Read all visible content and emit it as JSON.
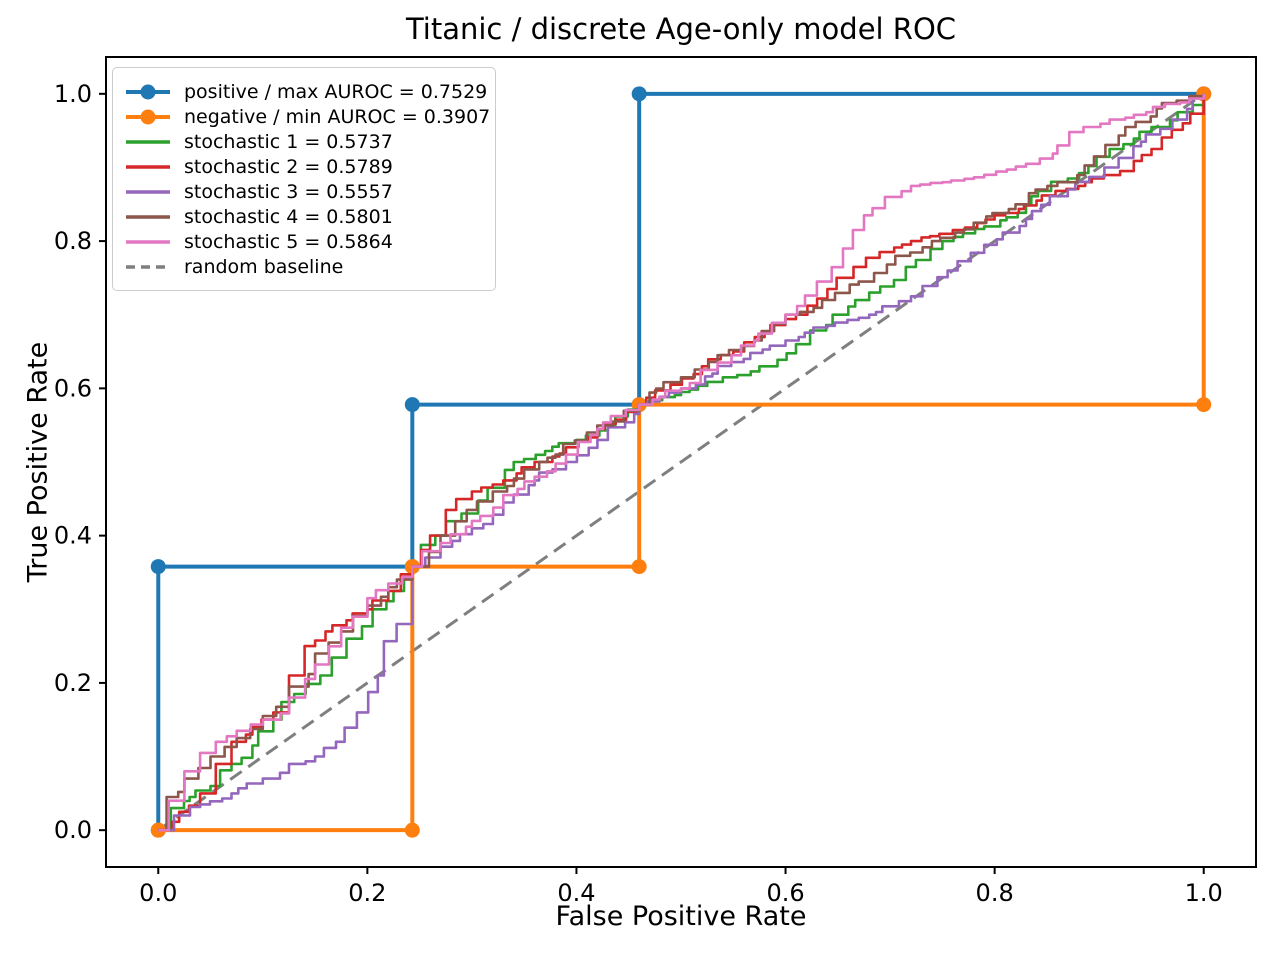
{
  "figure": {
    "title": "Titanic / discrete Age-only model ROC",
    "background": "#ffffff",
    "text_color": "#000000"
  },
  "chart_data": {
    "type": "line",
    "title": "Titanic / discrete Age-only model ROC",
    "xlabel": "False Positive Rate",
    "ylabel": "True Positive Rate",
    "xlim": [
      -0.05,
      1.05
    ],
    "ylim": [
      -0.05,
      1.05
    ],
    "xticks": [
      0.0,
      0.2,
      0.4,
      0.6,
      0.8,
      1.0
    ],
    "yticks": [
      0.0,
      0.2,
      0.4,
      0.6,
      0.8,
      1.0
    ],
    "grid": false,
    "legend_position": "upper left",
    "series": [
      {
        "name": "positive / max AUROC = 0.7529",
        "color": "#1f77b4",
        "style": "step",
        "marker": true,
        "linewidth": 4,
        "z": 2,
        "points": [
          [
            0,
            0
          ],
          [
            0,
            0.358
          ],
          [
            0.243,
            0.358
          ],
          [
            0.243,
            0.578
          ],
          [
            0.46,
            0.578
          ],
          [
            0.46,
            1.0
          ],
          [
            1.0,
            1.0
          ]
        ]
      },
      {
        "name": "negative / min AUROC = 0.3907",
        "color": "#ff7f0e",
        "style": "step",
        "marker": true,
        "linewidth": 4,
        "z": 3,
        "points": [
          [
            0,
            0
          ],
          [
            0.243,
            0
          ],
          [
            0.243,
            0.358
          ],
          [
            0.46,
            0.358
          ],
          [
            0.46,
            0.578
          ],
          [
            1.0,
            0.578
          ],
          [
            1.0,
            1.0
          ]
        ]
      },
      {
        "name": "stochastic 1 = 0.5737",
        "color": "#2ca02c",
        "style": "jagged",
        "marker": false,
        "linewidth": 2.6,
        "z": 4,
        "points": [
          [
            0,
            0
          ],
          [
            0.012,
            0.03
          ],
          [
            0.03,
            0.045
          ],
          [
            0.05,
            0.06
          ],
          [
            0.07,
            0.09
          ],
          [
            0.09,
            0.115
          ],
          [
            0.11,
            0.15
          ],
          [
            0.13,
            0.185
          ],
          [
            0.155,
            0.21
          ],
          [
            0.18,
            0.26
          ],
          [
            0.205,
            0.3
          ],
          [
            0.225,
            0.325
          ],
          [
            0.243,
            0.358
          ],
          [
            0.265,
            0.4
          ],
          [
            0.29,
            0.43
          ],
          [
            0.315,
            0.465
          ],
          [
            0.34,
            0.5
          ],
          [
            0.37,
            0.515
          ],
          [
            0.4,
            0.53
          ],
          [
            0.43,
            0.55
          ],
          [
            0.46,
            0.578
          ],
          [
            0.5,
            0.595
          ],
          [
            0.54,
            0.615
          ],
          [
            0.575,
            0.63
          ],
          [
            0.61,
            0.66
          ],
          [
            0.645,
            0.7
          ],
          [
            0.68,
            0.73
          ],
          [
            0.715,
            0.765
          ],
          [
            0.75,
            0.8
          ],
          [
            0.79,
            0.82
          ],
          [
            0.83,
            0.85
          ],
          [
            0.87,
            0.885
          ],
          [
            0.91,
            0.925
          ],
          [
            0.95,
            0.955
          ],
          [
            0.975,
            0.975
          ],
          [
            1,
            1
          ]
        ]
      },
      {
        "name": "stochastic 2 = 0.5789",
        "color": "#d62728",
        "style": "jagged",
        "marker": false,
        "linewidth": 2.6,
        "z": 5,
        "points": [
          [
            0,
            0
          ],
          [
            0.02,
            0.025
          ],
          [
            0.04,
            0.05
          ],
          [
            0.055,
            0.09
          ],
          [
            0.07,
            0.12
          ],
          [
            0.09,
            0.14
          ],
          [
            0.11,
            0.16
          ],
          [
            0.125,
            0.21
          ],
          [
            0.14,
            0.25
          ],
          [
            0.16,
            0.27
          ],
          [
            0.18,
            0.285
          ],
          [
            0.2,
            0.3
          ],
          [
            0.22,
            0.325
          ],
          [
            0.243,
            0.358
          ],
          [
            0.26,
            0.4
          ],
          [
            0.275,
            0.435
          ],
          [
            0.3,
            0.46
          ],
          [
            0.33,
            0.475
          ],
          [
            0.36,
            0.5
          ],
          [
            0.39,
            0.52
          ],
          [
            0.42,
            0.545
          ],
          [
            0.46,
            0.578
          ],
          [
            0.49,
            0.605
          ],
          [
            0.52,
            0.63
          ],
          [
            0.55,
            0.65
          ],
          [
            0.58,
            0.675
          ],
          [
            0.61,
            0.7
          ],
          [
            0.64,
            0.735
          ],
          [
            0.665,
            0.765
          ],
          [
            0.69,
            0.785
          ],
          [
            0.72,
            0.8
          ],
          [
            0.76,
            0.815
          ],
          [
            0.8,
            0.835
          ],
          [
            0.84,
            0.855
          ],
          [
            0.88,
            0.875
          ],
          [
            0.92,
            0.895
          ],
          [
            0.95,
            0.925
          ],
          [
            0.98,
            0.96
          ],
          [
            1,
            1
          ]
        ]
      },
      {
        "name": "stochastic 3 = 0.5557",
        "color": "#9467bd",
        "style": "jagged",
        "marker": false,
        "linewidth": 2.6,
        "z": 6,
        "points": [
          [
            0,
            0
          ],
          [
            0.015,
            0.02
          ],
          [
            0.04,
            0.035
          ],
          [
            0.07,
            0.05
          ],
          [
            0.1,
            0.07
          ],
          [
            0.125,
            0.09
          ],
          [
            0.15,
            0.1
          ],
          [
            0.17,
            0.12
          ],
          [
            0.19,
            0.16
          ],
          [
            0.21,
            0.21
          ],
          [
            0.228,
            0.28
          ],
          [
            0.243,
            0.358
          ],
          [
            0.27,
            0.385
          ],
          [
            0.3,
            0.41
          ],
          [
            0.33,
            0.445
          ],
          [
            0.36,
            0.475
          ],
          [
            0.39,
            0.5
          ],
          [
            0.42,
            0.53
          ],
          [
            0.46,
            0.578
          ],
          [
            0.5,
            0.6
          ],
          [
            0.53,
            0.62
          ],
          [
            0.56,
            0.64
          ],
          [
            0.6,
            0.665
          ],
          [
            0.64,
            0.685
          ],
          [
            0.68,
            0.7
          ],
          [
            0.72,
            0.725
          ],
          [
            0.755,
            0.76
          ],
          [
            0.79,
            0.795
          ],
          [
            0.83,
            0.83
          ],
          [
            0.87,
            0.87
          ],
          [
            0.905,
            0.9
          ],
          [
            0.94,
            0.935
          ],
          [
            0.97,
            0.965
          ],
          [
            1,
            1
          ]
        ]
      },
      {
        "name": "stochastic 4 = 0.5801",
        "color": "#8c564b",
        "style": "jagged",
        "marker": false,
        "linewidth": 2.6,
        "z": 7,
        "points": [
          [
            0,
            0
          ],
          [
            0.008,
            0.045
          ],
          [
            0.025,
            0.07
          ],
          [
            0.05,
            0.1
          ],
          [
            0.075,
            0.125
          ],
          [
            0.1,
            0.155
          ],
          [
            0.125,
            0.195
          ],
          [
            0.15,
            0.24
          ],
          [
            0.175,
            0.27
          ],
          [
            0.2,
            0.305
          ],
          [
            0.22,
            0.33
          ],
          [
            0.243,
            0.358
          ],
          [
            0.27,
            0.4
          ],
          [
            0.295,
            0.435
          ],
          [
            0.32,
            0.46
          ],
          [
            0.35,
            0.49
          ],
          [
            0.38,
            0.51
          ],
          [
            0.41,
            0.54
          ],
          [
            0.435,
            0.555
          ],
          [
            0.46,
            0.578
          ],
          [
            0.5,
            0.615
          ],
          [
            0.535,
            0.645
          ],
          [
            0.57,
            0.665
          ],
          [
            0.6,
            0.7
          ],
          [
            0.635,
            0.72
          ],
          [
            0.67,
            0.745
          ],
          [
            0.705,
            0.78
          ],
          [
            0.74,
            0.8
          ],
          [
            0.78,
            0.825
          ],
          [
            0.82,
            0.85
          ],
          [
            0.86,
            0.88
          ],
          [
            0.895,
            0.915
          ],
          [
            0.925,
            0.955
          ],
          [
            0.955,
            0.98
          ],
          [
            1,
            1
          ]
        ]
      },
      {
        "name": "stochastic 5 = 0.5864",
        "color": "#e377c2",
        "style": "jagged",
        "marker": false,
        "linewidth": 2.6,
        "z": 8,
        "points": [
          [
            0,
            0
          ],
          [
            0.01,
            0.04
          ],
          [
            0.025,
            0.08
          ],
          [
            0.04,
            0.105
          ],
          [
            0.055,
            0.12
          ],
          [
            0.075,
            0.135
          ],
          [
            0.1,
            0.15
          ],
          [
            0.125,
            0.18
          ],
          [
            0.15,
            0.225
          ],
          [
            0.175,
            0.275
          ],
          [
            0.2,
            0.315
          ],
          [
            0.22,
            0.335
          ],
          [
            0.243,
            0.358
          ],
          [
            0.27,
            0.39
          ],
          [
            0.3,
            0.42
          ],
          [
            0.33,
            0.455
          ],
          [
            0.36,
            0.48
          ],
          [
            0.39,
            0.51
          ],
          [
            0.42,
            0.545
          ],
          [
            0.46,
            0.578
          ],
          [
            0.5,
            0.6
          ],
          [
            0.535,
            0.635
          ],
          [
            0.57,
            0.665
          ],
          [
            0.6,
            0.7
          ],
          [
            0.63,
            0.745
          ],
          [
            0.655,
            0.79
          ],
          [
            0.675,
            0.835
          ],
          [
            0.695,
            0.86
          ],
          [
            0.72,
            0.875
          ],
          [
            0.75,
            0.88
          ],
          [
            0.79,
            0.89
          ],
          [
            0.83,
            0.905
          ],
          [
            0.86,
            0.93
          ],
          [
            0.885,
            0.955
          ],
          [
            0.91,
            0.965
          ],
          [
            0.945,
            0.975
          ],
          [
            1,
            1
          ]
        ]
      },
      {
        "name": "random baseline",
        "color": "#7f7f7f",
        "style": "dashed",
        "marker": false,
        "linewidth": 3,
        "z": 1,
        "points": [
          [
            0,
            0
          ],
          [
            1,
            1
          ]
        ]
      }
    ]
  }
}
